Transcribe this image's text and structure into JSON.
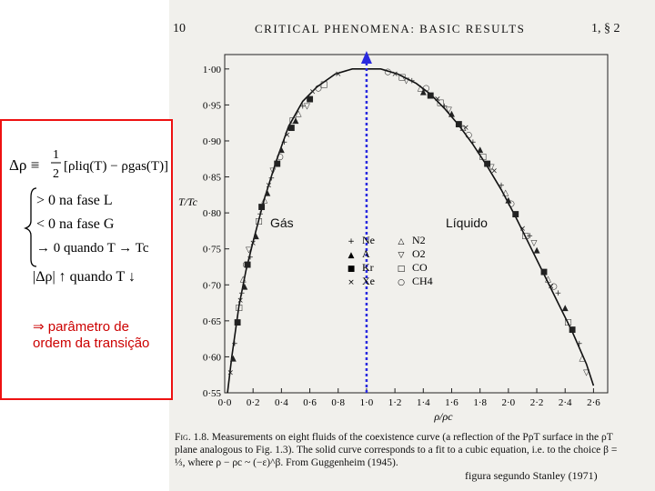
{
  "header": {
    "page_number": "10",
    "running_head": "CRITICAL PHENOMENA: BASIC RESULTS",
    "section": "1, § 2"
  },
  "figure": {
    "ylabel": "T/Tc",
    "xlabel": "ρ/ρc",
    "y_ticks": [
      "0·55",
      "0·60",
      "0·65",
      "0·70",
      "0·75",
      "0·80",
      "0·85",
      "0·90",
      "0·95",
      "1·00"
    ],
    "x_ticks": [
      "0·0",
      "0·2",
      "0·4",
      "0·6",
      "0·8",
      "1·0",
      "1·2",
      "1·4",
      "1·6",
      "1·8",
      "2·0",
      "2·2",
      "2·4",
      "2·6"
    ],
    "legend_left": [
      {
        "symbol": "+",
        "label": "Ne"
      },
      {
        "symbol": "▲",
        "label": "A"
      },
      {
        "symbol": "■",
        "label": "Kr"
      },
      {
        "symbol": "×",
        "label": "Xe"
      }
    ],
    "legend_right": [
      {
        "symbol": "△",
        "label": "N2"
      },
      {
        "symbol": "▽",
        "label": "O2"
      },
      {
        "symbol": "□",
        "label": "CO"
      },
      {
        "symbol": "○",
        "label": "CH4"
      }
    ],
    "label_gas": "Gás",
    "label_liquid": "Líquido",
    "caption_lead": "Fig. 1.8.",
    "caption_text": "Measurements on eight fluids of the coexistence curve (a reflection of the PρT surface in the ρT plane analogous to Fig. 1.3). The solid curve corresponds to a fit to a cubic equation, i.e. to the choice β = ⅓, where ρ − ρc ~ (−ε)^β. From Guggenheim (1945).",
    "credit": "figura segundo Stanley (1971)"
  },
  "annotation": {
    "definition_lhs": "Δρ ≡",
    "half": "1",
    "half_den": "2",
    "definition_rhs": "[ρliq(T) − ρgas(T)]",
    "case1": "> 0 na fase L",
    "case2": "< 0 na fase G",
    "case3": "→ 0 quando T → Tc",
    "trend": "|Δρ| ↑ quando T ↓",
    "conclusion": "⇒ parâmetro de ordem da transição"
  },
  "chart_data": {
    "type": "scatter",
    "xlabel": "ρ/ρc",
    "ylabel": "T/Tc",
    "xlim": [
      0,
      2.7
    ],
    "ylim": [
      0.55,
      1.02
    ],
    "grid": false,
    "legend": "center",
    "critical_line": {
      "x": 1.0
    },
    "curve": {
      "x": [
        0.02,
        0.05,
        0.1,
        0.15,
        0.2,
        0.28,
        0.36,
        0.45,
        0.55,
        0.65,
        0.78,
        0.9,
        1.0,
        1.1,
        1.22,
        1.35,
        1.45,
        1.55,
        1.65,
        1.75,
        1.85,
        1.95,
        2.05,
        2.15,
        2.25,
        2.35,
        2.45,
        2.55,
        2.6
      ],
      "y": [
        0.55,
        0.6,
        0.67,
        0.72,
        0.76,
        0.82,
        0.87,
        0.92,
        0.955,
        0.975,
        0.993,
        1.0,
        1.0,
        1.0,
        0.993,
        0.98,
        0.965,
        0.945,
        0.922,
        0.895,
        0.865,
        0.832,
        0.795,
        0.755,
        0.715,
        0.675,
        0.635,
        0.59,
        0.56
      ]
    },
    "series": [
      {
        "name": "Ne",
        "marker": "+",
        "x": [
          0.07,
          0.12,
          0.18,
          0.25,
          0.33,
          0.42,
          0.55,
          1.32,
          1.55,
          1.75,
          1.95,
          2.15,
          2.35,
          2.5
        ],
        "y": [
          0.62,
          0.69,
          0.74,
          0.8,
          0.85,
          0.9,
          0.95,
          0.985,
          0.95,
          0.9,
          0.84,
          0.77,
          0.69,
          0.62
        ]
      },
      {
        "name": "A",
        "marker": "▲",
        "x": [
          0.06,
          0.14,
          0.22,
          0.3,
          0.4,
          0.5,
          1.4,
          1.6,
          1.8,
          2.0,
          2.2,
          2.4
        ],
        "y": [
          0.6,
          0.7,
          0.77,
          0.83,
          0.89,
          0.93,
          0.97,
          0.94,
          0.89,
          0.82,
          0.75,
          0.67
        ]
      },
      {
        "name": "Kr",
        "marker": "■",
        "x": [
          0.09,
          0.16,
          0.26,
          0.37,
          0.47,
          0.6,
          1.45,
          1.65,
          1.85,
          2.05,
          2.25,
          2.45
        ],
        "y": [
          0.65,
          0.73,
          0.81,
          0.87,
          0.92,
          0.96,
          0.965,
          0.925,
          0.87,
          0.8,
          0.72,
          0.64
        ]
      },
      {
        "name": "Xe",
        "marker": "×",
        "x": [
          0.04,
          0.11,
          0.2,
          0.31,
          0.44,
          0.62,
          0.8,
          1.2,
          1.5,
          1.7,
          1.9,
          2.1,
          2.3
        ],
        "y": [
          0.58,
          0.68,
          0.76,
          0.84,
          0.91,
          0.97,
          0.995,
          0.995,
          0.96,
          0.92,
          0.86,
          0.78,
          0.7
        ]
      },
      {
        "name": "N2",
        "marker": "△",
        "x": [
          0.13,
          0.28,
          0.52,
          1.38,
          1.68,
          1.98,
          2.28,
          2.52
        ],
        "y": [
          0.71,
          0.82,
          0.94,
          0.975,
          0.92,
          0.83,
          0.71,
          0.6
        ]
      },
      {
        "name": "O2",
        "marker": "▽",
        "x": [
          0.17,
          0.34,
          0.58,
          1.28,
          1.58,
          1.88,
          2.18,
          2.55
        ],
        "y": [
          0.75,
          0.86,
          0.95,
          0.985,
          0.945,
          0.865,
          0.76,
          0.58
        ]
      },
      {
        "name": "CO",
        "marker": "□",
        "x": [
          0.1,
          0.24,
          0.48,
          0.7,
          1.25,
          1.52,
          1.82,
          2.12,
          2.42
        ],
        "y": [
          0.67,
          0.79,
          0.93,
          0.98,
          0.99,
          0.955,
          0.88,
          0.77,
          0.65
        ]
      },
      {
        "name": "CH4",
        "marker": "○",
        "x": [
          0.15,
          0.39,
          0.66,
          1.15,
          1.42,
          1.72,
          2.02,
          2.32
        ],
        "y": [
          0.73,
          0.88,
          0.975,
          0.998,
          0.975,
          0.91,
          0.815,
          0.7
        ]
      }
    ]
  }
}
